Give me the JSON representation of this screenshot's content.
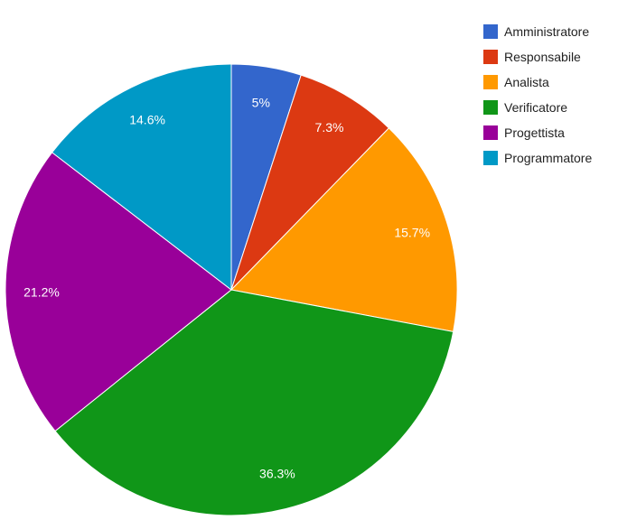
{
  "chart_data": {
    "type": "pie",
    "labels": [
      "Amministratore",
      "Responsabile",
      "Analista",
      "Verificatore",
      "Progettista",
      "Programmatore"
    ],
    "values": [
      5,
      7.3,
      15.7,
      36.3,
      21.2,
      14.6
    ],
    "value_labels": [
      "5%",
      "7.3%",
      "15.7%",
      "36.3%",
      "21.2%",
      "14.6%"
    ],
    "colors": [
      "#3366cc",
      "#dc3912",
      "#ff9900",
      "#109618",
      "#990099",
      "#0099c6"
    ],
    "start_angle": "12 o'clock",
    "direction": "clockwise",
    "legend_position": "right"
  }
}
